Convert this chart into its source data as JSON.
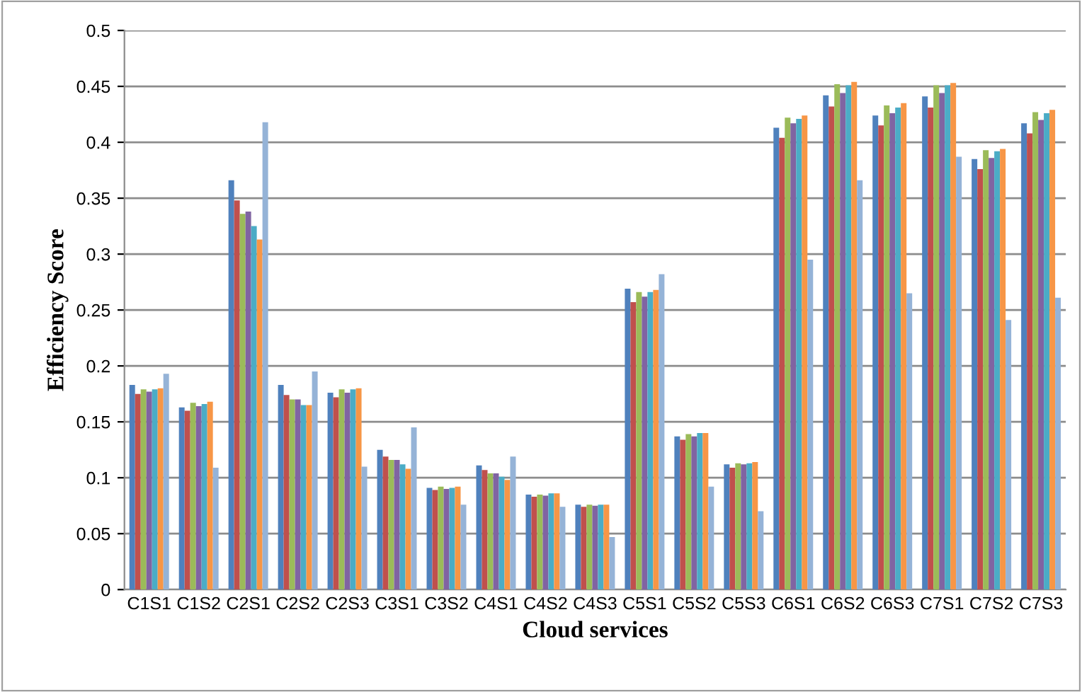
{
  "chart_data": {
    "type": "bar",
    "xlabel": "Cloud services",
    "ylabel": "Efficiency Score",
    "categories": [
      "C1S1",
      "C1S2",
      "C2S1",
      "C2S2",
      "C2S3",
      "C3S1",
      "C3S2",
      "C4S1",
      "C4S2",
      "C4S3",
      "C5S1",
      "C5S2",
      "C5S3",
      "C6S1",
      "C6S2",
      "C6S3",
      "C7S1",
      "C7S2",
      "C7S3"
    ],
    "series": [
      {
        "color": "#4f81bd",
        "values": [
          0.183,
          0.163,
          0.366,
          0.183,
          0.176,
          0.125,
          0.091,
          0.111,
          0.085,
          0.076,
          0.269,
          0.137,
          0.112,
          0.413,
          0.442,
          0.424,
          0.441,
          0.385,
          0.417
        ]
      },
      {
        "color": "#c0504d",
        "values": [
          0.175,
          0.16,
          0.348,
          0.174,
          0.172,
          0.119,
          0.089,
          0.107,
          0.083,
          0.074,
          0.257,
          0.134,
          0.109,
          0.404,
          0.432,
          0.415,
          0.431,
          0.376,
          0.408
        ]
      },
      {
        "color": "#9bbb59",
        "values": [
          0.179,
          0.167,
          0.336,
          0.17,
          0.179,
          0.116,
          0.092,
          0.104,
          0.085,
          0.076,
          0.266,
          0.139,
          0.113,
          0.422,
          0.452,
          0.433,
          0.451,
          0.393,
          0.427
        ]
      },
      {
        "color": "#8064a2",
        "values": [
          0.177,
          0.164,
          0.338,
          0.17,
          0.176,
          0.116,
          0.09,
          0.104,
          0.084,
          0.075,
          0.262,
          0.137,
          0.112,
          0.417,
          0.444,
          0.426,
          0.444,
          0.386,
          0.42
        ]
      },
      {
        "color": "#4bacc6",
        "values": [
          0.179,
          0.166,
          0.325,
          0.165,
          0.179,
          0.112,
          0.091,
          0.101,
          0.086,
          0.076,
          0.266,
          0.14,
          0.113,
          0.421,
          0.451,
          0.431,
          0.451,
          0.392,
          0.426
        ]
      },
      {
        "color": "#f79646",
        "values": [
          0.18,
          0.168,
          0.313,
          0.165,
          0.18,
          0.108,
          0.092,
          0.098,
          0.086,
          0.076,
          0.268,
          0.14,
          0.114,
          0.424,
          0.454,
          0.435,
          0.453,
          0.394,
          0.429
        ]
      },
      {
        "color": "#95b3d7",
        "values": [
          0.193,
          0.109,
          0.418,
          0.195,
          0.11,
          0.145,
          0.076,
          0.119,
          0.074,
          0.047,
          0.282,
          0.092,
          0.07,
          0.295,
          0.366,
          0.265,
          0.387,
          0.241,
          0.261
        ]
      }
    ],
    "ylim": [
      0,
      0.5
    ],
    "yticks": [
      0,
      0.05,
      0.1,
      0.15,
      0.2,
      0.25,
      0.3,
      0.35,
      0.4,
      0.45,
      0.5
    ],
    "grid": "y"
  }
}
